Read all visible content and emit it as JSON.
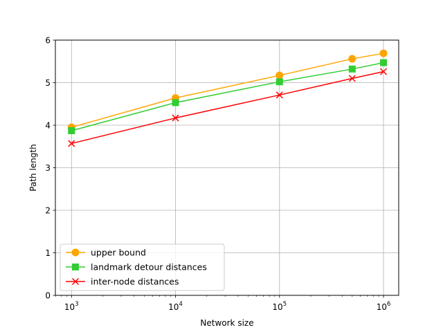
{
  "chart_data": {
    "type": "line",
    "title": "",
    "xlabel": "Network size",
    "ylabel": "Path length",
    "xscale": "log",
    "xlim": [
      700,
      1400000
    ],
    "ylim": [
      0,
      6
    ],
    "grid": true,
    "legend_position": "lower-left",
    "x": [
      1000,
      10000,
      100000,
      500000,
      1000000
    ],
    "x_tick_values": [
      1000,
      10000,
      100000,
      1000000
    ],
    "x_tick_labels": [
      {
        "base": "10",
        "exp": "3"
      },
      {
        "base": "10",
        "exp": "4"
      },
      {
        "base": "10",
        "exp": "5"
      },
      {
        "base": "10",
        "exp": "6"
      }
    ],
    "y_ticks": [
      0,
      1,
      2,
      3,
      4,
      5,
      6
    ],
    "series": [
      {
        "name": "upper bound",
        "color": "#ffa500",
        "marker": "circle",
        "values": [
          3.95,
          4.64,
          5.17,
          5.56,
          5.69
        ]
      },
      {
        "name": "landmark detour distances",
        "color": "#32cd32",
        "marker": "square",
        "values": [
          3.87,
          4.53,
          5.02,
          5.32,
          5.47
        ]
      },
      {
        "name": "inter-node distances",
        "color": "#ff0000",
        "marker": "x",
        "values": [
          3.57,
          4.17,
          4.71,
          5.1,
          5.26
        ]
      }
    ]
  }
}
